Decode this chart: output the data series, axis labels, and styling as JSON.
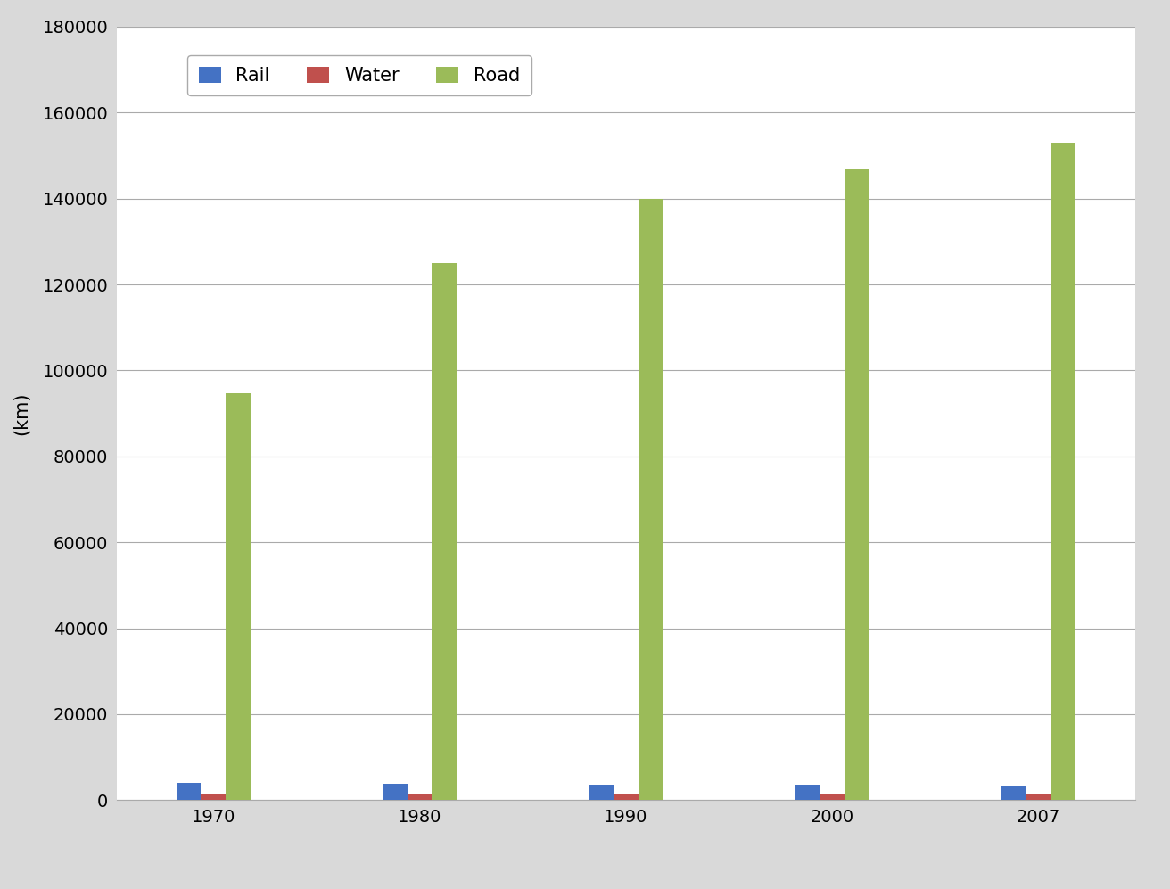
{
  "years": [
    "1970",
    "1980",
    "1990",
    "2000",
    "2007"
  ],
  "rail": [
    4000,
    3700,
    3500,
    3500,
    3200
  ],
  "water": [
    1550,
    1500,
    1500,
    1500,
    1500
  ],
  "road": [
    94600,
    125000,
    140000,
    147000,
    153000
  ],
  "rail_color": "#4472C4",
  "water_color": "#C0504D",
  "road_color": "#9BBB59",
  "ylabel": "(km)",
  "ylim": [
    0,
    180000
  ],
  "yticks": [
    0,
    20000,
    40000,
    60000,
    80000,
    100000,
    120000,
    140000,
    160000,
    180000
  ],
  "legend_labels": [
    "Rail",
    "Water",
    "Road"
  ],
  "figure_facecolor": "#D9D9D9",
  "plot_facecolor": "#FFFFFF",
  "bar_width": 0.18,
  "group_width": 0.6
}
